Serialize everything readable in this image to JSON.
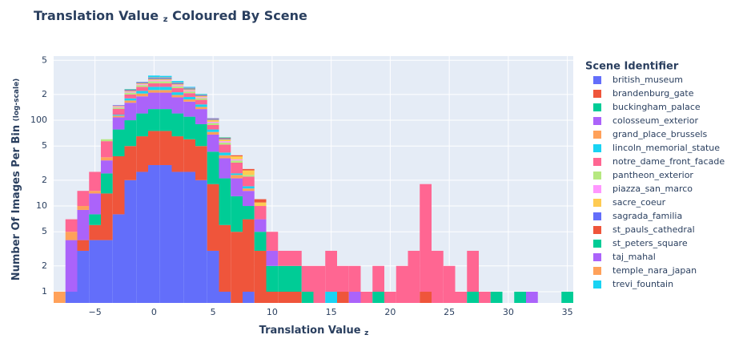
{
  "chart_data": {
    "type": "histogram",
    "title": "Translation Value",
    "title_sub": "z",
    "title_rest": "Coloured By Scene",
    "x_label": "Translation Value",
    "x_label_sub": "z",
    "y_label": "Number Of Images Per Bin",
    "y_label_sub": "(log-scale)",
    "legend_title": "Scene Identifier",
    "log_y": true,
    "grid": true,
    "barmode": "stack",
    "bins": [
      -8.5,
      -7.5,
      -6.5,
      -5.5,
      -4.5,
      -3.5,
      -2.5,
      -1.5,
      -0.5,
      0.5,
      1.5,
      2.5,
      3.5,
      4.5,
      5.5,
      6.5,
      7.5,
      8.5,
      9.5,
      10.5,
      11.5,
      12.5,
      13.5,
      14.5,
      15.5,
      16.5,
      17.5,
      18.5,
      19.5,
      20.5,
      21.5,
      22.5,
      23.5,
      24.5,
      25.5,
      26.5,
      27.5,
      28.5,
      29.5,
      30.5,
      31.5,
      32.5,
      33.5,
      34.5,
      35.5
    ],
    "xlim": [
      -8.5,
      35.5
    ],
    "xticks": [
      {
        "value": -5,
        "label": "−5"
      },
      0,
      5,
      10,
      15,
      20,
      25,
      30,
      35
    ],
    "ylim": [
      0.74,
      560
    ],
    "yticks": [
      1,
      2,
      5,
      10,
      {
        "value": 20,
        "label": "2"
      },
      {
        "value": 50,
        "label": "5"
      },
      100,
      {
        "value": 200,
        "label": "2"
      },
      {
        "value": 500,
        "label": "5"
      }
    ],
    "series": [
      {
        "name": "british_museum",
        "color": "#636efa",
        "values": [
          0,
          1,
          3,
          4,
          4,
          8,
          20,
          25,
          30,
          30,
          25,
          25,
          20,
          3,
          1,
          0,
          1,
          0,
          0,
          0,
          0,
          0,
          0,
          0,
          0,
          0,
          0,
          0,
          0,
          0,
          0,
          0,
          0,
          0,
          0,
          0,
          0,
          0,
          0,
          0,
          0,
          0,
          0,
          0
        ]
      },
      {
        "name": "brandenburg_gate",
        "color": "#EF553B",
        "values": [
          0,
          0,
          1,
          2,
          10,
          30,
          30,
          40,
          45,
          45,
          40,
          35,
          30,
          15,
          5,
          5,
          6,
          3,
          1,
          1,
          1,
          0,
          0,
          0,
          1,
          0,
          0,
          0,
          0,
          0,
          0,
          1,
          0,
          0,
          0,
          0,
          0,
          0,
          0,
          0,
          0,
          0,
          0,
          0
        ]
      },
      {
        "name": "buckingham_palace",
        "color": "#00cc96",
        "values": [
          0,
          0,
          0,
          2,
          10,
          40,
          50,
          55,
          60,
          60,
          55,
          50,
          40,
          25,
          15,
          8,
          3,
          2,
          1,
          1,
          1,
          1,
          0,
          0,
          0,
          0,
          0,
          1,
          0,
          0,
          0,
          0,
          0,
          0,
          0,
          1,
          0,
          1,
          0,
          1,
          0,
          0,
          0,
          1
        ]
      },
      {
        "name": "colosseum_exterior",
        "color": "#ab63fa",
        "values": [
          0,
          3,
          5,
          6,
          10,
          30,
          60,
          70,
          75,
          75,
          65,
          55,
          45,
          25,
          15,
          8,
          5,
          2,
          1,
          0,
          0,
          0,
          0,
          0,
          0,
          1,
          0,
          0,
          0,
          0,
          0,
          0,
          0,
          0,
          0,
          0,
          0,
          0,
          0,
          0,
          1,
          0,
          0,
          0
        ]
      },
      {
        "name": "grand_place_brussels",
        "color": "#FFA15A",
        "values": [
          1,
          1,
          1,
          1,
          3,
          5,
          10,
          15,
          15,
          15,
          12,
          10,
          8,
          5,
          3,
          2,
          1,
          0,
          0,
          0,
          0,
          0,
          0,
          0,
          0,
          0,
          0,
          0,
          0,
          0,
          0,
          0,
          0,
          0,
          0,
          0,
          0,
          0,
          0,
          0,
          0,
          0,
          0,
          0
        ]
      },
      {
        "name": "lincoln_memorial_statue",
        "color": "#19d3f3",
        "values": [
          0,
          0,
          0,
          0,
          0,
          3,
          10,
          15,
          20,
          20,
          15,
          12,
          10,
          5,
          3,
          1,
          1,
          0,
          0,
          0,
          0,
          0,
          0,
          1,
          0,
          0,
          0,
          0,
          0,
          0,
          0,
          0,
          0,
          0,
          0,
          0,
          0,
          0,
          0,
          0,
          0,
          0,
          0,
          0
        ]
      },
      {
        "name": "notre_dame_front_facade",
        "color": "#FF6692",
        "values": [
          0,
          2,
          5,
          10,
          20,
          20,
          20,
          25,
          25,
          25,
          25,
          20,
          20,
          10,
          10,
          8,
          5,
          3,
          2,
          1,
          1,
          1,
          2,
          2,
          1,
          1,
          1,
          1,
          1,
          2,
          3,
          17,
          3,
          2,
          1,
          2,
          1,
          0,
          0,
          0,
          0,
          0,
          0,
          0
        ]
      },
      {
        "name": "pantheon_exterior",
        "color": "#B6E880",
        "values": [
          0,
          0,
          0,
          0,
          3,
          5,
          10,
          12,
          15,
          15,
          12,
          10,
          8,
          5,
          3,
          2,
          1,
          0,
          0,
          0,
          0,
          0,
          0,
          0,
          0,
          0,
          0,
          0,
          0,
          0,
          0,
          0,
          0,
          0,
          0,
          0,
          0,
          0,
          0,
          0,
          0,
          0,
          0,
          0
        ]
      },
      {
        "name": "piazza_san_marco",
        "color": "#FF97FF",
        "values": [
          0,
          0,
          0,
          0,
          0,
          3,
          5,
          6,
          8,
          8,
          7,
          6,
          5,
          3,
          2,
          1,
          0,
          0,
          0,
          0,
          0,
          0,
          0,
          0,
          0,
          0,
          0,
          0,
          0,
          0,
          0,
          0,
          0,
          0,
          0,
          0,
          0,
          0,
          0,
          0,
          0,
          0,
          0,
          0
        ]
      },
      {
        "name": "sacre_coeur",
        "color": "#FECB52",
        "values": [
          0,
          0,
          0,
          0,
          0,
          3,
          5,
          6,
          8,
          8,
          7,
          6,
          5,
          5,
          3,
          3,
          3,
          1,
          0,
          0,
          0,
          0,
          0,
          0,
          0,
          0,
          0,
          0,
          0,
          0,
          0,
          0,
          0,
          0,
          0,
          0,
          0,
          0,
          0,
          0,
          0,
          0,
          0,
          0
        ]
      },
      {
        "name": "sagrada_familia",
        "color": "#636efa",
        "values": [
          0,
          0,
          0,
          0,
          0,
          2,
          5,
          5,
          5,
          5,
          5,
          4,
          3,
          2,
          1,
          0,
          0,
          0,
          0,
          0,
          0,
          0,
          0,
          0,
          0,
          0,
          0,
          0,
          0,
          0,
          0,
          0,
          0,
          0,
          0,
          0,
          0,
          0,
          0,
          0,
          0,
          0,
          0,
          0
        ]
      },
      {
        "name": "st_pauls_cathedral",
        "color": "#EF553B",
        "values": [
          0,
          0,
          0,
          0,
          0,
          0,
          2,
          2,
          3,
          3,
          3,
          2,
          2,
          1,
          1,
          1,
          1,
          1,
          0,
          0,
          0,
          0,
          0,
          0,
          0,
          0,
          0,
          0,
          0,
          0,
          0,
          0,
          0,
          0,
          0,
          0,
          0,
          0,
          0,
          0,
          0,
          0,
          0,
          0
        ]
      },
      {
        "name": "st_peters_square",
        "color": "#00cc96",
        "values": [
          0,
          0,
          0,
          0,
          0,
          0,
          3,
          2,
          3,
          3,
          3,
          2,
          2,
          1,
          1,
          0,
          0,
          0,
          0,
          0,
          0,
          0,
          0,
          0,
          0,
          0,
          0,
          0,
          0,
          0,
          0,
          0,
          0,
          0,
          0,
          0,
          0,
          0,
          0,
          0,
          0,
          0,
          0,
          0
        ]
      },
      {
        "name": "taj_mahal",
        "color": "#ab63fa",
        "values": [
          0,
          0,
          0,
          0,
          0,
          1,
          0,
          2,
          3,
          3,
          2,
          2,
          1,
          1,
          0,
          0,
          0,
          0,
          0,
          0,
          0,
          0,
          0,
          0,
          0,
          0,
          0,
          0,
          0,
          0,
          0,
          0,
          0,
          0,
          0,
          0,
          0,
          0,
          0,
          0,
          0,
          0,
          0,
          0
        ]
      },
      {
        "name": "temple_nara_japan",
        "color": "#FFA15A",
        "values": [
          0,
          0,
          0,
          0,
          0,
          0,
          0,
          0,
          2,
          2,
          1,
          1,
          1,
          0,
          0,
          0,
          0,
          0,
          0,
          0,
          0,
          0,
          0,
          0,
          0,
          0,
          0,
          0,
          0,
          0,
          0,
          0,
          0,
          0,
          0,
          0,
          0,
          0,
          0,
          0,
          0,
          0,
          0,
          0
        ]
      },
      {
        "name": "trevi_fountain",
        "color": "#19d3f3",
        "values": [
          0,
          0,
          0,
          0,
          0,
          0,
          0,
          0,
          15,
          12,
          10,
          5,
          3,
          0,
          0,
          0,
          0,
          0,
          0,
          0,
          0,
          0,
          0,
          0,
          0,
          0,
          0,
          0,
          0,
          0,
          0,
          0,
          0,
          0,
          0,
          0,
          0,
          0,
          0,
          0,
          0,
          0,
          0,
          0
        ]
      }
    ]
  }
}
